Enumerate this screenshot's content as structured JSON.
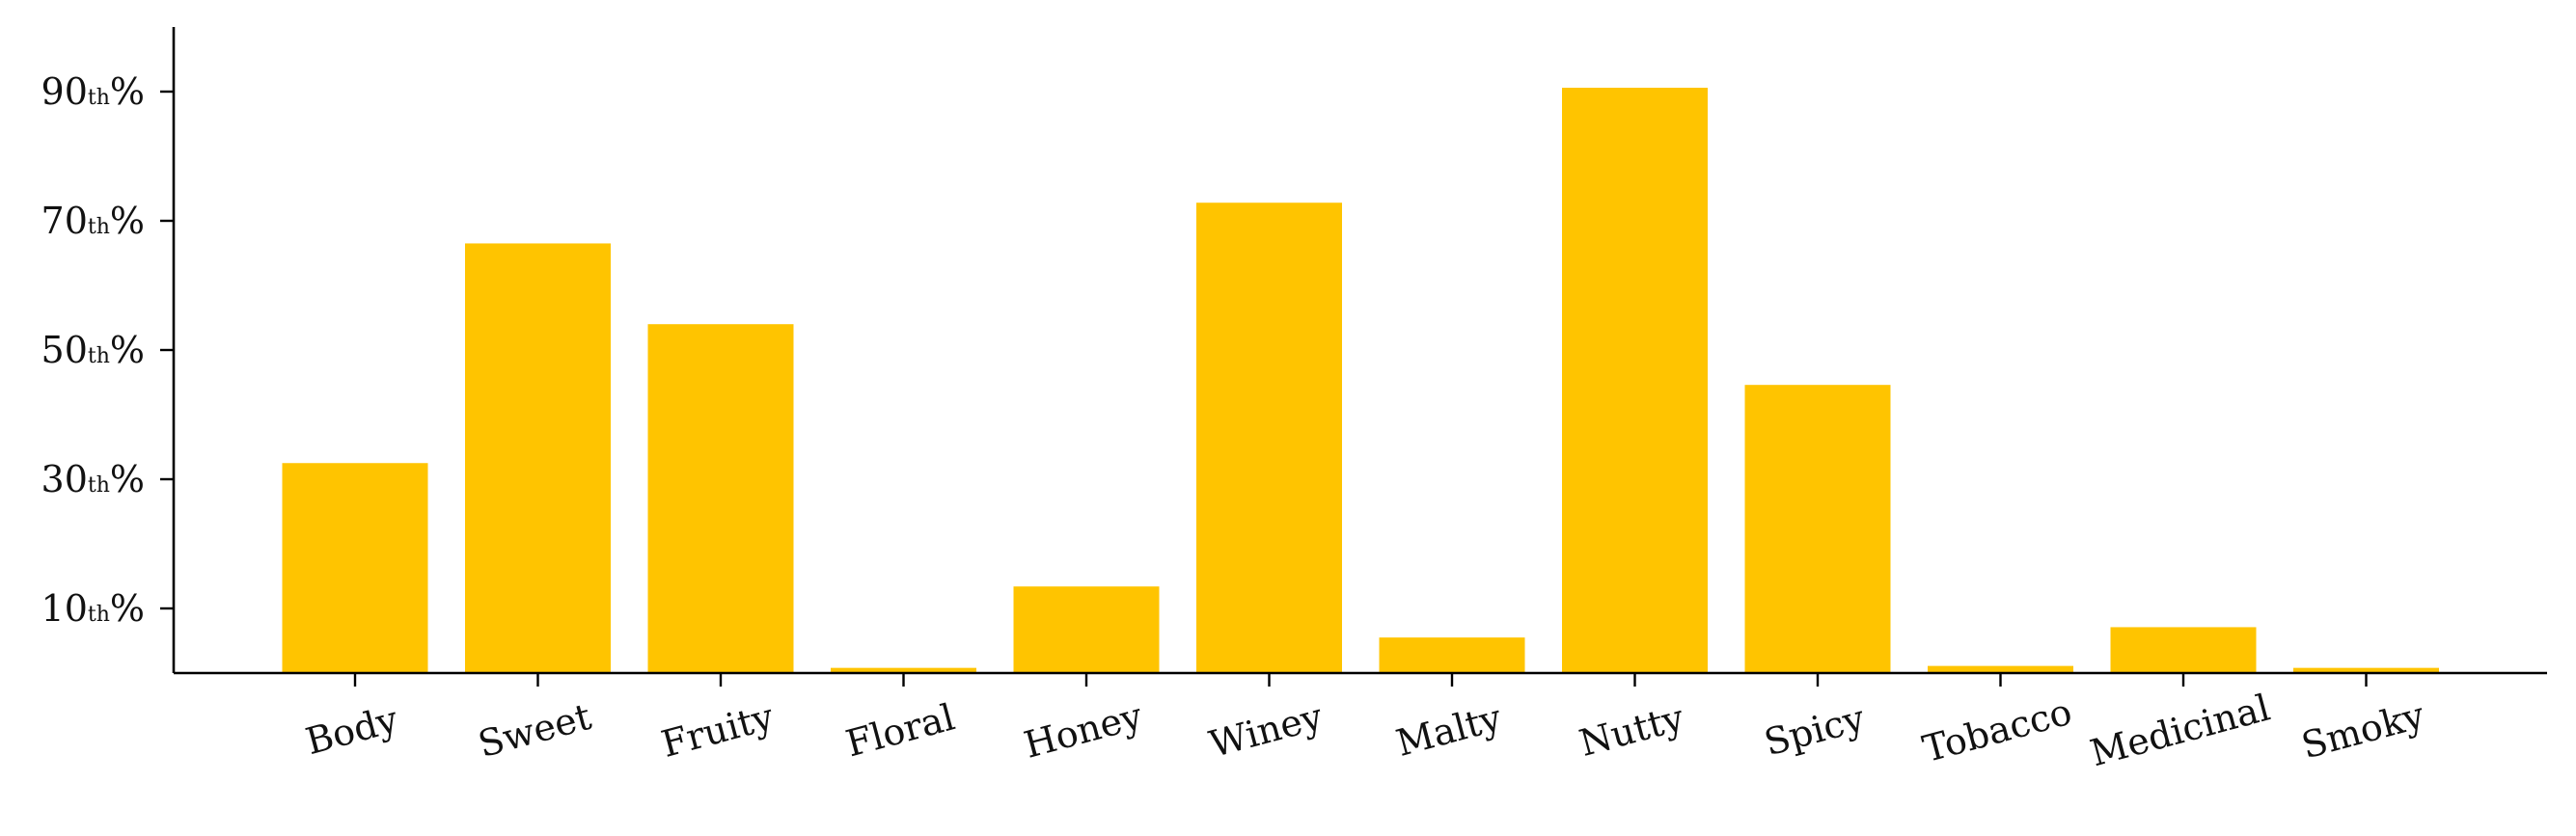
{
  "chart_data": {
    "type": "bar",
    "title": "",
    "xlabel": "",
    "ylabel": "",
    "categories": [
      "Body",
      "Sweet",
      "Fruity",
      "Floral",
      "Honey",
      "Winey",
      "Malty",
      "Nutty",
      "Spicy",
      "Tobacco",
      "Medicinal",
      "Smoky"
    ],
    "values": [
      32.5,
      66.5,
      54,
      0.8,
      13.4,
      72.8,
      5.5,
      90.6,
      44.6,
      1.1,
      7.1,
      0.8
    ],
    "ylim": [
      0,
      100
    ],
    "yticks": [
      {
        "value": 10,
        "number": "10",
        "suffix": "th",
        "unit": "%"
      },
      {
        "value": 30,
        "number": "30",
        "suffix": "th",
        "unit": "%"
      },
      {
        "value": 50,
        "number": "50",
        "suffix": "th",
        "unit": "%"
      },
      {
        "value": 70,
        "number": "70",
        "suffix": "th",
        "unit": "%"
      },
      {
        "value": 90,
        "number": "90",
        "suffix": "th",
        "unit": "%"
      }
    ],
    "bar_color": "#FFC400",
    "grid": false,
    "legend": "none"
  }
}
